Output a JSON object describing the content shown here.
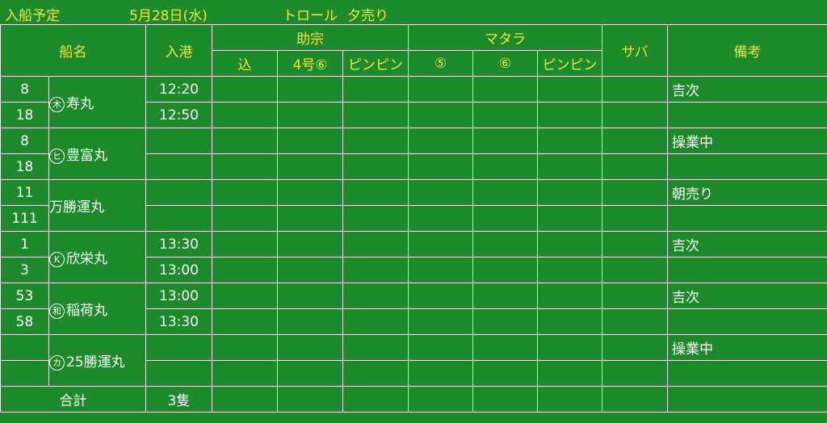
{
  "header": {
    "title": "入船予定",
    "date": "5月28日(水)",
    "type": "トロール",
    "session": "夕売り"
  },
  "table": {
    "columns": {
      "ship": "船名",
      "arrival": "入港",
      "group1": "助宗",
      "group1_sub": [
        "込",
        "4号⑥",
        "ピンピン"
      ],
      "group2": "マタラ",
      "group2_sub": [
        "⑤",
        "⑥",
        "ピンピン"
      ],
      "saba": "サバ",
      "remarks": "備考"
    },
    "rows": [
      {
        "nums": [
          "8",
          "18"
        ],
        "mark": "木",
        "name": "寿丸",
        "times": [
          "12:20",
          "12:50"
        ],
        "remark": "吉次"
      },
      {
        "nums": [
          "8",
          "18"
        ],
        "mark": "ヒ",
        "name": "豊富丸",
        "times": [
          "",
          ""
        ],
        "remark": "操業中"
      },
      {
        "nums": [
          "11",
          "111"
        ],
        "mark": "万",
        "name": "勝運丸",
        "times": [
          "",
          ""
        ],
        "remark": "朝売り"
      },
      {
        "nums": [
          "1",
          "3"
        ],
        "mark": "K",
        "name": "欣栄丸",
        "times": [
          "13:30",
          "13:00"
        ],
        "remark": "吉次"
      },
      {
        "nums": [
          "53",
          "58"
        ],
        "mark": "和",
        "name": "稲荷丸",
        "times": [
          "13:00",
          "13:30"
        ],
        "remark": "吉次"
      },
      {
        "nums": [
          "",
          ""
        ],
        "mark": "カ",
        "name": "25勝運丸",
        "times": [
          "",
          ""
        ],
        "remark": "操業中"
      }
    ],
    "footer": {
      "label": "合計",
      "count": "3隻"
    }
  }
}
